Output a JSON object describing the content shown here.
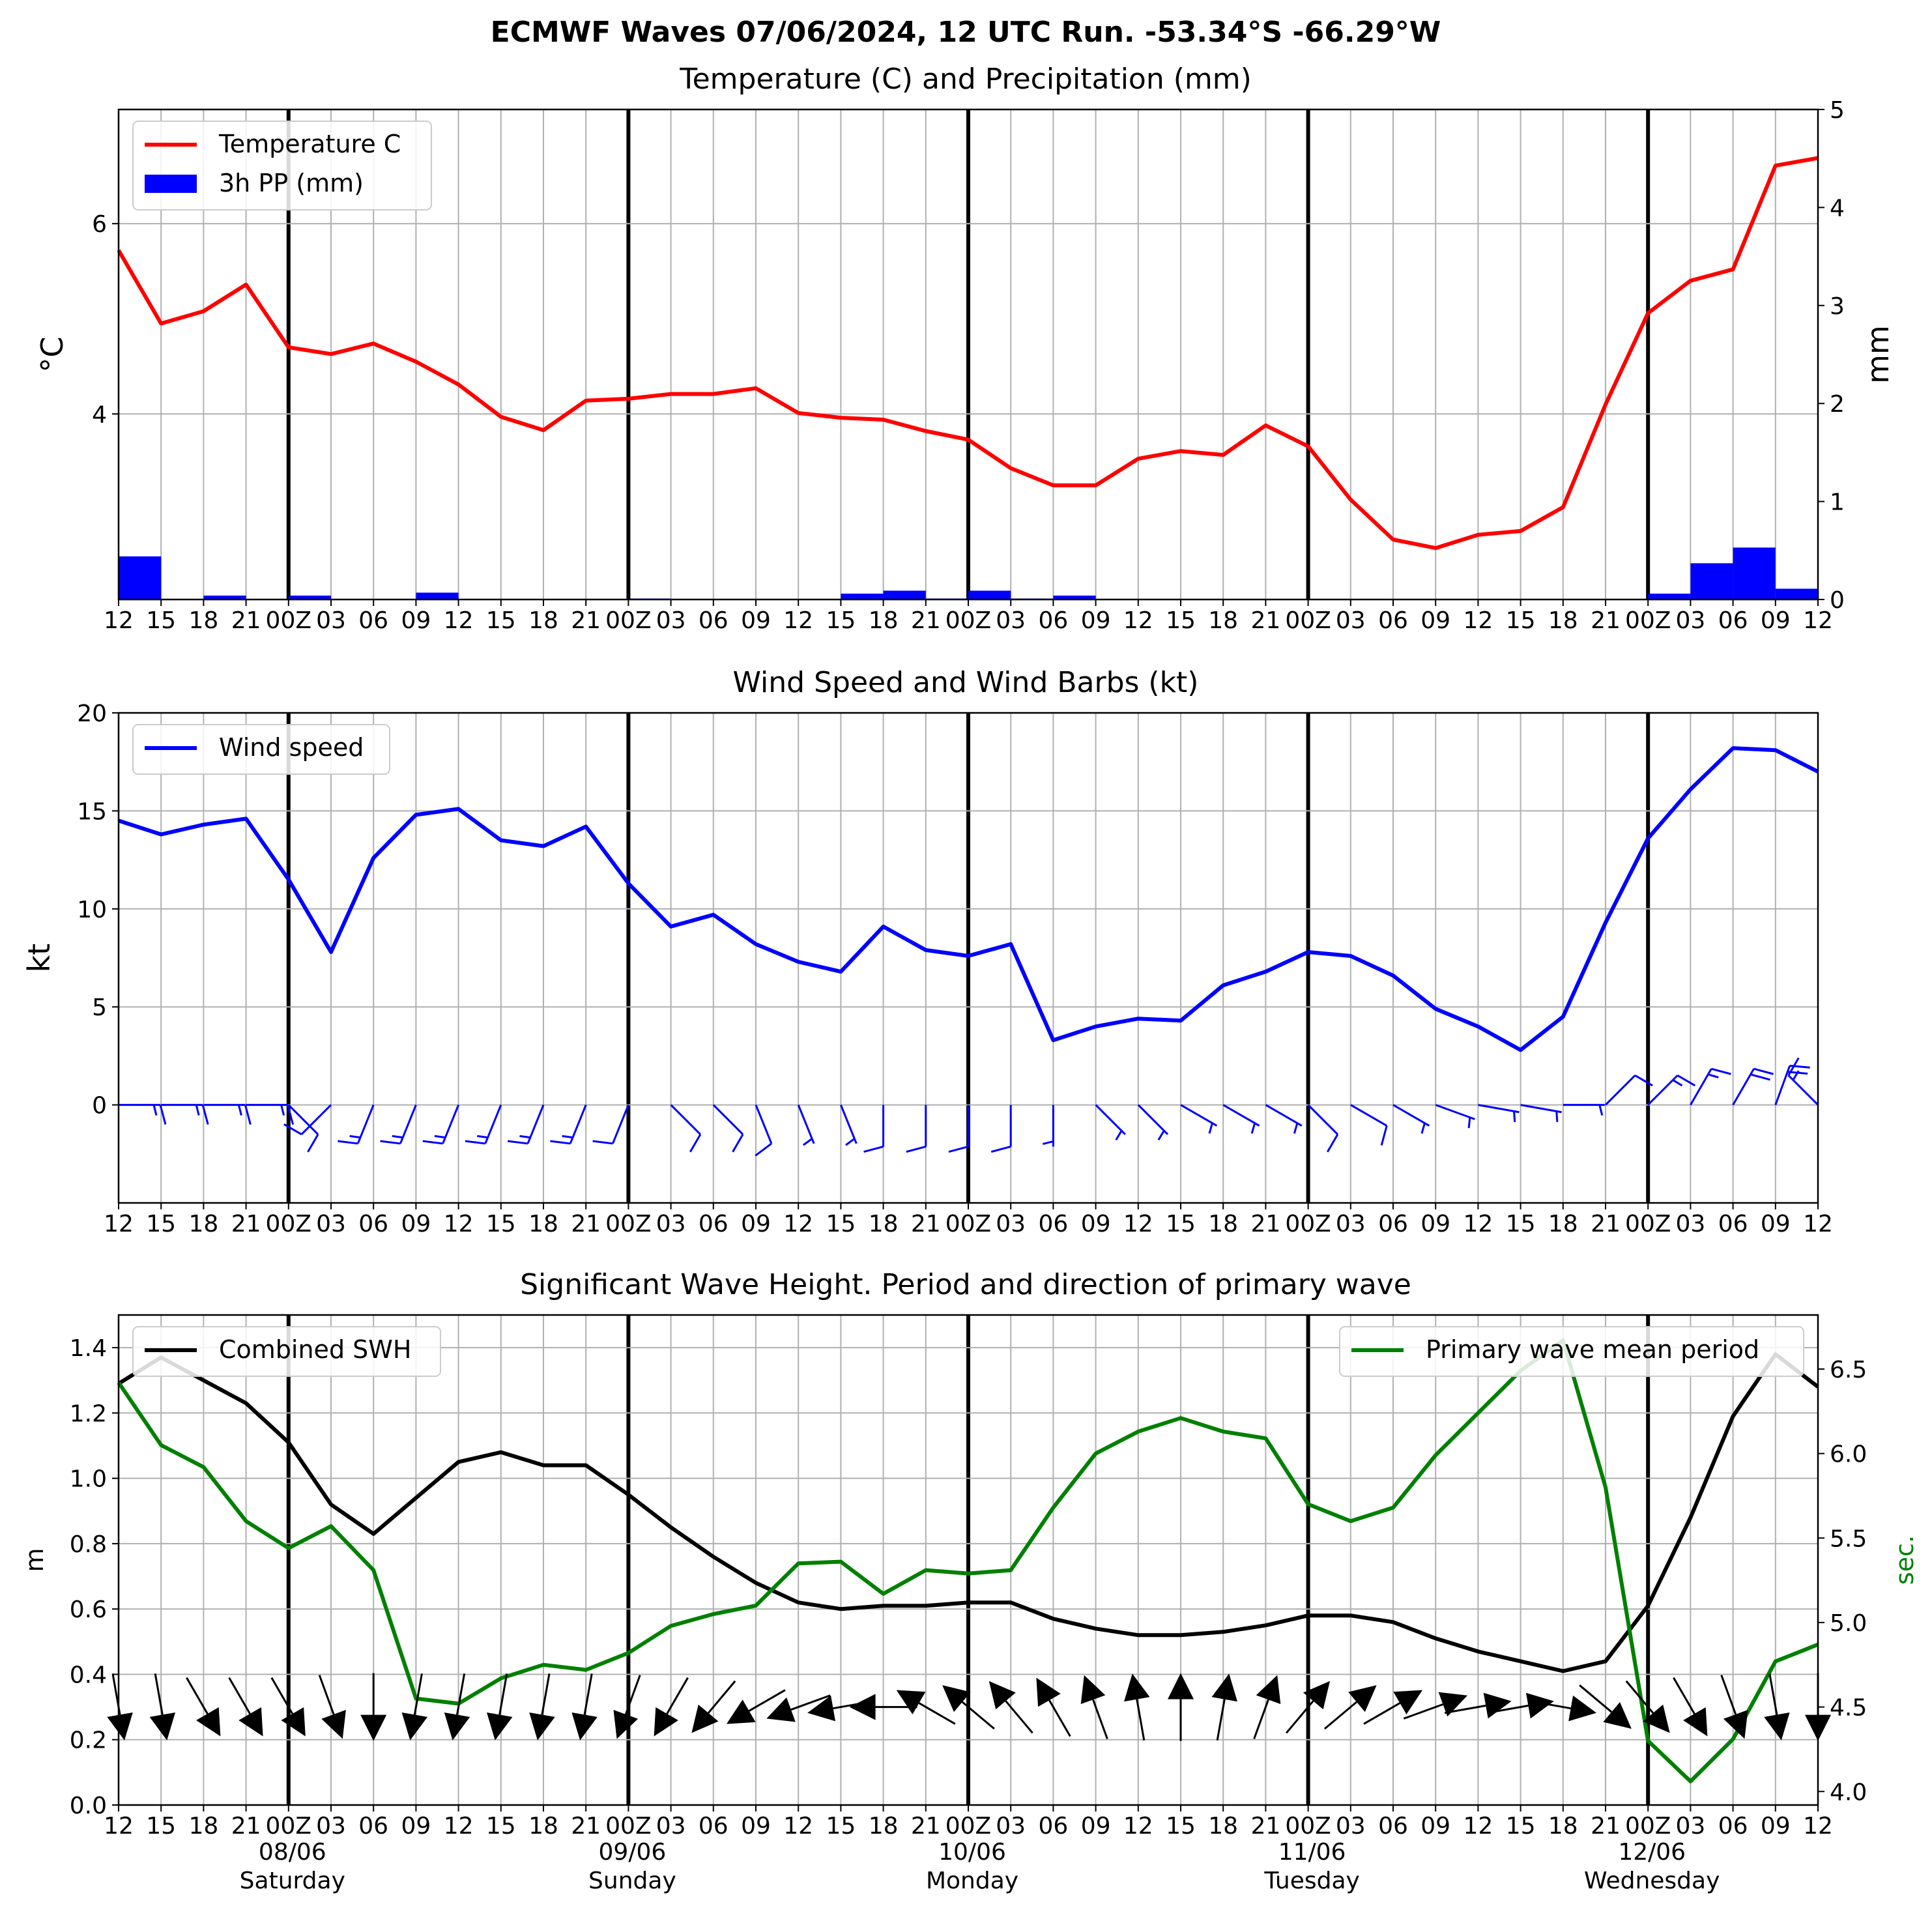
{
  "suptitle": "ECMWF Waves 07/06/2024, 12 UTC Run. -53.34°S -66.29°W",
  "colors": {
    "temperature": "#ff0000",
    "precip": "#0000ff",
    "wind": "#0000ff",
    "swh": "#000000",
    "period": "#008000",
    "grid": "#b0b0b0"
  },
  "x_axis": {
    "tick_labels": [
      "12",
      "15",
      "18",
      "21",
      "00Z",
      "03",
      "06",
      "09",
      "12",
      "15",
      "18",
      "21",
      "00Z",
      "03",
      "06",
      "09",
      "12",
      "15",
      "18",
      "21",
      "00Z",
      "03",
      "06",
      "09",
      "12",
      "15",
      "18",
      "21",
      "00Z",
      "03",
      "06",
      "09",
      "12",
      "15",
      "18",
      "21",
      "00Z",
      "03",
      "06",
      "09",
      "12"
    ],
    "day_labels": [
      {
        "date": "08/06",
        "weekday": "Saturday",
        "index": 4
      },
      {
        "date": "09/06",
        "weekday": "Sunday",
        "index": 12
      },
      {
        "date": "10/06",
        "weekday": "Monday",
        "index": 20
      },
      {
        "date": "11/06",
        "weekday": "Tuesday",
        "index": 28
      },
      {
        "date": "12/06",
        "weekday": "Wednesday",
        "index": 36
      }
    ]
  },
  "chart_data": [
    {
      "type": "line",
      "title": "Temperature (C) and Precipitation (mm)",
      "ylabel": "$^\\circ$C",
      "y2label": "mm",
      "ylim": [
        2.05,
        7.2
      ],
      "y2lim": [
        0,
        5
      ],
      "yticks": [
        4,
        6
      ],
      "y2ticks": [
        0,
        1,
        2,
        3,
        4,
        5
      ],
      "legend": "top-left",
      "grid": true,
      "series": [
        {
          "name": "Temperature C",
          "axis": "left",
          "values": [
            5.72,
            4.95,
            5.08,
            5.36,
            4.7,
            4.63,
            4.74,
            4.55,
            4.31,
            3.97,
            3.83,
            4.14,
            4.16,
            4.21,
            4.21,
            4.27,
            4.01,
            3.96,
            3.94,
            3.82,
            3.73,
            3.43,
            3.25,
            3.25,
            3.53,
            3.61,
            3.57,
            3.88,
            3.66,
            3.1,
            2.68,
            2.59,
            2.73,
            2.77,
            3.02,
            4.1,
            5.06,
            5.4,
            5.52,
            6.61,
            6.69
          ]
        },
        {
          "name": "3h PP (mm)",
          "axis": "right",
          "kind": "bar",
          "values": [
            0.44,
            0,
            0.04,
            0,
            0.04,
            0,
            0,
            0.07,
            0,
            0,
            0,
            0,
            0.01,
            0,
            0,
            0,
            0,
            0.06,
            0.09,
            0.01,
            0.09,
            0.01,
            0.04,
            0,
            0,
            0,
            0,
            0,
            0,
            0,
            0,
            0,
            0,
            0,
            0,
            0,
            0.06,
            0.37,
            0.53,
            0.11
          ]
        }
      ]
    },
    {
      "type": "line",
      "title": "Wind Speed and Wind Barbs (kt)",
      "ylabel": "kt",
      "ylim": [
        -5,
        20
      ],
      "yticks": [
        0,
        5,
        10,
        15,
        20
      ],
      "legend": "top-left",
      "grid": true,
      "series": [
        {
          "name": "Wind speed",
          "values": [
            14.5,
            13.8,
            14.3,
            14.6,
            11.5,
            7.8,
            12.6,
            14.8,
            15.1,
            13.5,
            13.2,
            14.2,
            11.3,
            9.1,
            9.7,
            8.2,
            7.3,
            6.8,
            9.1,
            7.9,
            7.6,
            8.2,
            3.3,
            4.0,
            4.4,
            4.3,
            6.1,
            6.8,
            7.8,
            7.6,
            6.6,
            4.9,
            4.0,
            2.8,
            4.5,
            9.3,
            13.6,
            16.1,
            18.2,
            18.1,
            17.0
          ]
        }
      ],
      "barb_direction_deg": [
        270,
        270,
        270,
        270,
        315,
        45,
        22,
        22,
        22,
        22,
        22,
        22,
        22,
        315,
        315,
        338,
        338,
        338,
        0,
        0,
        0,
        0,
        0,
        315,
        315,
        300,
        300,
        300,
        315,
        300,
        300,
        290,
        280,
        280,
        270,
        225,
        225,
        210,
        210,
        200,
        135
      ]
    },
    {
      "type": "line",
      "title": "Significant Wave Height. Period and direction of primary wave",
      "ylabel": "m",
      "y2label": "sec.",
      "ylim": [
        0,
        1.5
      ],
      "y2lim": [
        3.92,
        6.82
      ],
      "yticks": [
        0.0,
        0.2,
        0.4,
        0.6,
        0.8,
        1.0,
        1.2,
        1.4
      ],
      "y2ticks": [
        4.0,
        4.5,
        5.0,
        5.5,
        6.0,
        6.5
      ],
      "grid": true,
      "series": [
        {
          "name": "Combined SWH",
          "axis": "left",
          "legend": "top-left",
          "values": [
            1.29,
            1.37,
            1.3,
            1.23,
            1.11,
            0.92,
            0.83,
            0.94,
            1.05,
            1.08,
            1.04,
            1.04,
            0.95,
            0.85,
            0.76,
            0.68,
            0.62,
            0.6,
            0.61,
            0.61,
            0.62,
            0.62,
            0.57,
            0.54,
            0.52,
            0.52,
            0.53,
            0.55,
            0.58,
            0.58,
            0.56,
            0.51,
            0.47,
            0.44,
            0.41,
            0.44,
            0.61,
            0.88,
            1.19,
            1.38,
            1.28
          ]
        },
        {
          "name": "Primary wave mean period",
          "axis": "right",
          "legend": "top-right",
          "values": [
            6.42,
            6.05,
            5.92,
            5.6,
            5.44,
            5.57,
            5.31,
            4.55,
            4.52,
            4.67,
            4.75,
            4.72,
            4.82,
            4.98,
            5.05,
            5.1,
            5.35,
            5.36,
            5.17,
            5.31,
            5.29,
            5.31,
            5.68,
            6.0,
            6.13,
            6.21,
            6.13,
            6.09,
            5.7,
            5.6,
            5.68,
            5.99,
            6.24,
            6.49,
            6.67,
            5.8,
            4.3,
            4.06,
            4.31,
            4.77,
            4.87
          ]
        }
      ],
      "wave_direction_deg": [
        350,
        350,
        330,
        330,
        330,
        340,
        0,
        10,
        10,
        10,
        10,
        10,
        20,
        30,
        40,
        60,
        70,
        80,
        90,
        120,
        130,
        140,
        150,
        160,
        170,
        180,
        190,
        200,
        220,
        230,
        240,
        250,
        260,
        260,
        280,
        310,
        320,
        330,
        340,
        350,
        0
      ]
    }
  ]
}
